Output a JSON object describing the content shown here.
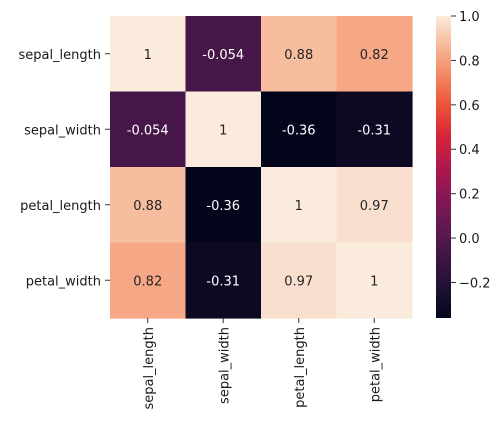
{
  "chart_data": {
    "type": "heatmap",
    "title": "",
    "xlabel": "",
    "ylabel": "",
    "x_categories": [
      "sepal_length",
      "sepal_width",
      "petal_length",
      "petal_width"
    ],
    "y_categories": [
      "sepal_length",
      "sepal_width",
      "petal_length",
      "petal_width"
    ],
    "values": [
      [
        1,
        -0.054,
        0.88,
        0.82
      ],
      [
        -0.054,
        1,
        -0.36,
        -0.31
      ],
      [
        0.88,
        -0.36,
        1,
        0.97
      ],
      [
        0.82,
        -0.31,
        0.97,
        1
      ]
    ],
    "annotations": [
      [
        "1",
        "-0.054",
        "0.88",
        "0.82"
      ],
      [
        "-0.054",
        "1",
        "-0.36",
        "-0.31"
      ],
      [
        "0.88",
        "-0.36",
        "1",
        "0.97"
      ],
      [
        "0.82",
        "-0.31",
        "0.97",
        "1"
      ]
    ],
    "colorbar": {
      "vmin": -0.36,
      "vmax": 1.0,
      "ticks": [
        1.0,
        0.8,
        0.6,
        0.4,
        0.2,
        0.0,
        -0.2
      ],
      "tick_labels": [
        "1.0",
        "0.8",
        "0.6",
        "0.4",
        "0.2",
        "0.0",
        "−0.2"
      ],
      "colormap": "rocket"
    },
    "x_tick_rotation": "vertical",
    "grid": false,
    "legend": "colorbar-right"
  }
}
